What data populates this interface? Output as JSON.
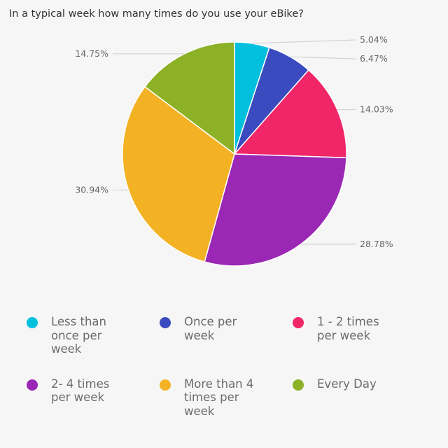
{
  "chart_data": {
    "type": "pie",
    "title": "In a typical week how many times do you use your eBike?",
    "slices": [
      {
        "label": "Less than once per week",
        "value": 5.04,
        "display": "5.04%",
        "color": "#00c0de"
      },
      {
        "label": "Once per week",
        "value": 6.47,
        "display": "6.47%",
        "color": "#3a4bbf"
      },
      {
        "label": "1 - 2 times per week",
        "value": 14.03,
        "display": "14.03%",
        "color": "#f02668"
      },
      {
        "label": "2- 4 times per week",
        "value": 28.78,
        "display": "28.78%",
        "color": "#9b27b5"
      },
      {
        "label": "More than 4 times per week",
        "value": 30.94,
        "display": "30.94%",
        "color": "#f3b224"
      },
      {
        "label": "Every Day",
        "value": 14.75,
        "display": "14.75%",
        "color": "#8cb127"
      }
    ],
    "legend_position": "bottom"
  }
}
